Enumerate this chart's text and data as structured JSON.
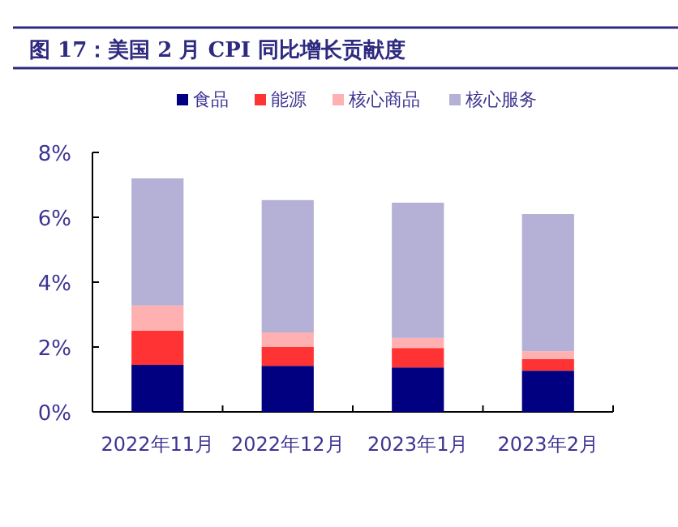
{
  "chart_data": {
    "type": "bar",
    "title": "图 17：美国 2 月 CPI 同比增长贡献度",
    "stacked": true,
    "legend": "top",
    "categories": [
      "2022年11月",
      "2022年12月",
      "2023年1月",
      "2023年2月"
    ],
    "series": [
      {
        "name": "食品",
        "color": "#000080",
        "values": [
          1.45,
          1.42,
          1.37,
          1.27
        ]
      },
      {
        "name": "能源",
        "color": "#ff3333",
        "values": [
          1.05,
          0.58,
          0.6,
          0.36
        ]
      },
      {
        "name": "核心商品",
        "color": "#ffb0b0",
        "values": [
          0.78,
          0.45,
          0.31,
          0.24
        ]
      },
      {
        "name": "核心服务",
        "color": "#b4b0d6",
        "values": [
          3.92,
          4.08,
          4.17,
          4.23
        ]
      }
    ],
    "ylim": [
      0,
      8
    ],
    "yticks": [
      {
        "value": 0,
        "label": "0%"
      },
      {
        "value": 2,
        "label": "2%"
      },
      {
        "value": 4,
        "label": "4%"
      },
      {
        "value": 6,
        "label": "6%"
      },
      {
        "value": 8,
        "label": "8%"
      }
    ]
  }
}
